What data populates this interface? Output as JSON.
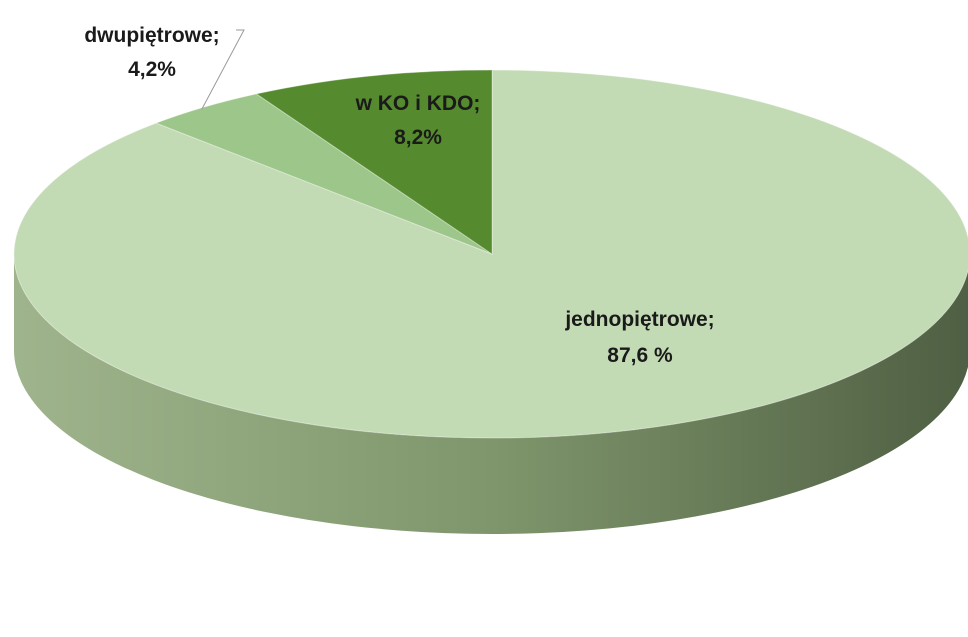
{
  "chart_data": {
    "type": "pie",
    "style": "3d",
    "categories": [
      "jednopiętrowe",
      "dwupiętrowe",
      "w KO i KDO"
    ],
    "values": [
      87.6,
      4.2,
      8.2
    ],
    "unit": "%",
    "colors": [
      "#c3dbb5",
      "#9dc68a",
      "#558a2f"
    ],
    "side_colors": [
      "#8fa87e",
      "#b7d7a8",
      "#4d7d2a"
    ],
    "data_labels": [
      {
        "name": "jednopiętrowe;",
        "value": "87,6 %"
      },
      {
        "name": "dwupiętrowe;",
        "value": "4,2%"
      },
      {
        "name": "w KO i KDO;",
        "value": "8,2%"
      }
    ],
    "legend": "none",
    "title": ""
  }
}
